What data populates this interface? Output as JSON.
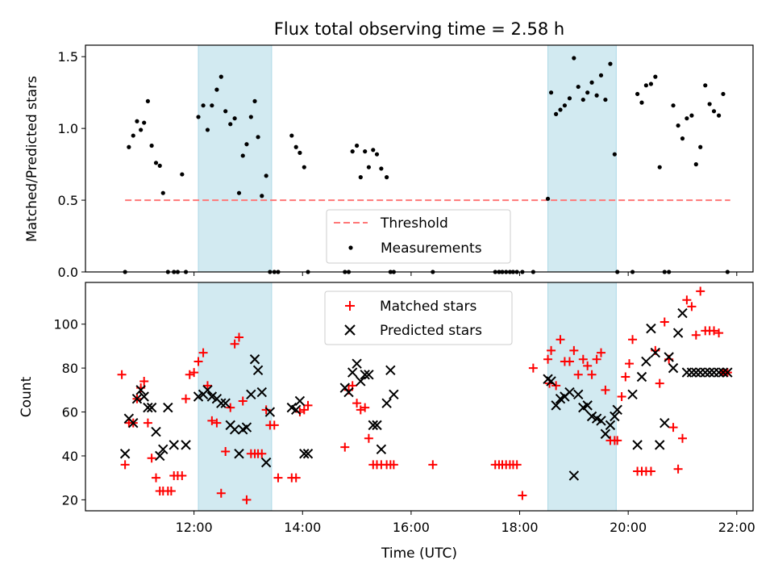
{
  "title": "Flux total observing time = 2.58 h",
  "colors": {
    "band": "#add8e6",
    "threshold": "#ff7777",
    "measurement": "#000000",
    "matched": "#ff0000",
    "predicted": "#000000"
  },
  "chart_data": [
    {
      "type": "scatter",
      "panel": "top",
      "ylabel": "Matched/Predicted stars",
      "ylim": [
        0,
        1.58
      ],
      "yticks": [
        "0.0",
        "0.5",
        "1.0",
        "1.5"
      ],
      "yticks_values": [
        0,
        0.5,
        1.0,
        1.5
      ],
      "xlim_hours": [
        10.0,
        22.3
      ],
      "shaded_intervals_hours": [
        [
          12.08,
          13.43
        ],
        [
          18.52,
          19.78
        ]
      ],
      "legend": {
        "position": "lower-center",
        "threshold_label": "Threshold",
        "measurements_label": "Measurements"
      },
      "threshold": {
        "name": "Threshold",
        "value": 0.5,
        "x_range_hours": [
          10.73,
          21.88
        ]
      },
      "series": [
        {
          "name": "Measurements",
          "x_hours": [
            10.73,
            10.8,
            10.88,
            10.95,
            11.02,
            11.08,
            11.15,
            11.22,
            11.3,
            11.37,
            11.43,
            11.52,
            11.63,
            11.7,
            11.78,
            11.85,
            12.08,
            12.17,
            12.25,
            12.33,
            12.42,
            12.5,
            12.58,
            12.67,
            12.75,
            12.83,
            12.9,
            12.97,
            13.05,
            13.12,
            13.18,
            13.25,
            13.33,
            13.4,
            13.48,
            13.55,
            13.8,
            13.88,
            13.95,
            14.03,
            14.1,
            14.78,
            14.85,
            14.92,
            15.0,
            15.07,
            15.15,
            15.22,
            15.3,
            15.37,
            15.45,
            15.55,
            15.62,
            15.68,
            16.4,
            17.55,
            17.62,
            17.68,
            17.75,
            17.82,
            17.88,
            17.95,
            18.05,
            18.25,
            18.52,
            18.58,
            18.67,
            18.75,
            18.83,
            18.92,
            19.0,
            19.08,
            19.17,
            19.25,
            19.33,
            19.42,
            19.5,
            19.58,
            19.67,
            19.75,
            19.8,
            20.08,
            20.17,
            20.25,
            20.33,
            20.42,
            20.5,
            20.58,
            20.67,
            20.75,
            20.83,
            20.92,
            21.0,
            21.08,
            21.17,
            21.25,
            21.33,
            21.42,
            21.5,
            21.58,
            21.67,
            21.75,
            21.83
          ],
          "y": [
            0.0,
            0.87,
            0.95,
            1.05,
            0.99,
            1.04,
            1.19,
            0.88,
            0.76,
            0.74,
            0.55,
            0.0,
            0.0,
            0.0,
            0.68,
            0.0,
            1.08,
            1.16,
            0.99,
            1.16,
            1.27,
            1.36,
            1.12,
            1.03,
            1.07,
            0.55,
            0.81,
            0.89,
            1.08,
            1.19,
            0.94,
            0.53,
            0.67,
            0.0,
            0.0,
            0.0,
            0.95,
            0.87,
            0.83,
            0.73,
            0.0,
            0.0,
            0.0,
            0.84,
            0.88,
            0.66,
            0.84,
            0.73,
            0.85,
            0.82,
            0.72,
            0.66,
            0.0,
            0.0,
            0.0,
            0.0,
            0.0,
            0.0,
            0.0,
            0.0,
            0.0,
            0.0,
            0.0,
            0.0,
            0.51,
            1.25,
            1.1,
            1.13,
            1.16,
            1.21,
            1.49,
            1.29,
            1.2,
            1.25,
            1.32,
            1.23,
            1.37,
            1.2,
            1.45,
            0.82,
            0.0,
            0.0,
            1.24,
            1.18,
            1.3,
            1.31,
            1.36,
            0.73,
            0.0,
            0.0,
            1.16,
            1.02,
            0.93,
            1.07,
            1.09,
            0.75,
            0.87,
            1.3,
            1.17,
            1.12,
            1.09,
            1.24,
            0.0
          ]
        }
      ]
    },
    {
      "type": "scatter",
      "panel": "bottom",
      "xlabel": "Time (UTC)",
      "ylabel": "Count",
      "ylim": [
        15,
        119
      ],
      "yticks": [
        "20",
        "40",
        "60",
        "80",
        "100"
      ],
      "yticks_values": [
        20,
        40,
        60,
        80,
        100
      ],
      "xlim_hours": [
        10.0,
        22.3
      ],
      "xticks": [
        "12:00",
        "14:00",
        "16:00",
        "18:00",
        "20:00",
        "22:00"
      ],
      "xticks_values_hours": [
        12,
        14,
        16,
        18,
        20,
        22
      ],
      "shaded_intervals_hours": [
        [
          12.08,
          13.43
        ],
        [
          18.52,
          19.78
        ]
      ],
      "legend": {
        "position": "upper-center"
      },
      "series": [
        {
          "name": "Matched stars",
          "x_hours": [
            10.67,
            10.73,
            10.8,
            10.88,
            10.95,
            11.02,
            11.08,
            11.15,
            11.22,
            11.3,
            11.37,
            11.43,
            11.52,
            11.58,
            11.63,
            11.7,
            11.78,
            11.85,
            11.92,
            12.0,
            12.08,
            12.17,
            12.25,
            12.33,
            12.42,
            12.5,
            12.58,
            12.67,
            12.75,
            12.83,
            12.9,
            12.97,
            13.05,
            13.12,
            13.18,
            13.25,
            13.33,
            13.4,
            13.48,
            13.55,
            13.8,
            13.88,
            13.95,
            14.03,
            14.1,
            14.78,
            14.85,
            14.92,
            15.0,
            15.07,
            15.15,
            15.22,
            15.3,
            15.37,
            15.45,
            15.55,
            15.62,
            15.68,
            16.4,
            17.55,
            17.62,
            17.68,
            17.75,
            17.82,
            17.88,
            17.95,
            18.05,
            18.25,
            18.52,
            18.55,
            18.58,
            18.67,
            18.75,
            18.83,
            18.92,
            19.0,
            19.08,
            19.17,
            19.25,
            19.33,
            19.42,
            19.5,
            19.58,
            19.67,
            19.75,
            19.8,
            19.88,
            19.95,
            20.02,
            20.08,
            20.17,
            20.25,
            20.33,
            20.42,
            20.5,
            20.58,
            20.67,
            20.75,
            20.83,
            20.92,
            21.0,
            21.08,
            21.17,
            21.25,
            21.33,
            21.42,
            21.5,
            21.58,
            21.67,
            21.75,
            21.83
          ],
          "y": [
            77,
            36,
            55,
            55,
            66,
            71,
            74,
            55,
            39,
            30,
            24,
            24,
            24,
            24,
            31,
            31,
            31,
            66,
            77,
            78,
            83,
            87,
            72,
            56,
            55,
            23,
            42,
            62,
            91,
            94,
            65,
            20,
            41,
            41,
            41,
            41,
            61,
            54,
            54,
            30,
            30,
            30,
            60,
            61,
            63,
            44,
            70,
            72,
            64,
            61,
            62,
            48,
            36,
            36,
            36,
            36,
            36,
            36,
            36,
            36,
            36,
            36,
            36,
            36,
            36,
            36,
            22,
            80,
            84,
            73,
            88,
            72,
            93,
            83,
            83,
            88,
            77,
            84,
            81,
            77,
            84,
            87,
            70,
            47,
            47,
            47,
            67,
            76,
            82,
            93,
            33,
            33,
            33,
            33,
            88,
            73,
            101,
            84,
            53,
            34,
            48,
            111,
            108,
            95,
            115,
            97,
            97,
            97,
            96,
            78,
            78
          ]
        },
        {
          "name": "Predicted stars",
          "x_hours": [
            10.73,
            10.8,
            10.88,
            10.95,
            11.02,
            11.08,
            11.15,
            11.22,
            11.3,
            11.37,
            11.43,
            11.52,
            11.63,
            11.85,
            12.08,
            12.17,
            12.25,
            12.33,
            12.42,
            12.5,
            12.58,
            12.67,
            12.75,
            12.83,
            12.9,
            12.97,
            13.05,
            13.12,
            13.18,
            13.25,
            13.33,
            13.4,
            13.8,
            13.88,
            13.95,
            14.03,
            14.1,
            14.78,
            14.85,
            14.92,
            15.0,
            15.07,
            15.15,
            15.22,
            15.3,
            15.37,
            15.45,
            15.55,
            15.62,
            15.68,
            18.52,
            18.58,
            18.67,
            18.75,
            18.83,
            18.92,
            19.0,
            19.08,
            19.17,
            19.25,
            19.33,
            19.42,
            19.5,
            19.58,
            19.67,
            19.75,
            19.8,
            20.08,
            20.17,
            20.25,
            20.33,
            20.42,
            20.5,
            20.58,
            20.67,
            20.75,
            20.83,
            20.92,
            21.0,
            21.08,
            21.17,
            21.25,
            21.33,
            21.42,
            21.5,
            21.58,
            21.67,
            21.75,
            21.83
          ],
          "y": [
            41,
            57,
            55,
            66,
            70,
            67,
            62,
            62,
            51,
            40,
            43,
            62,
            45,
            45,
            67,
            68,
            70,
            67,
            66,
            64,
            64,
            54,
            52,
            41,
            52,
            53,
            68,
            84,
            79,
            69,
            37,
            60,
            62,
            61,
            65,
            41,
            41,
            71,
            69,
            78,
            82,
            74,
            77,
            77,
            54,
            54,
            43,
            64,
            79,
            68,
            75,
            74,
            63,
            66,
            67,
            69,
            31,
            68,
            62,
            63,
            58,
            57,
            56,
            50,
            54,
            58,
            61,
            68,
            45,
            76,
            83,
            98,
            87,
            45,
            55,
            85,
            80,
            96,
            105,
            78,
            78,
            78,
            78,
            78,
            78,
            78,
            78,
            78,
            78
          ]
        }
      ]
    }
  ]
}
